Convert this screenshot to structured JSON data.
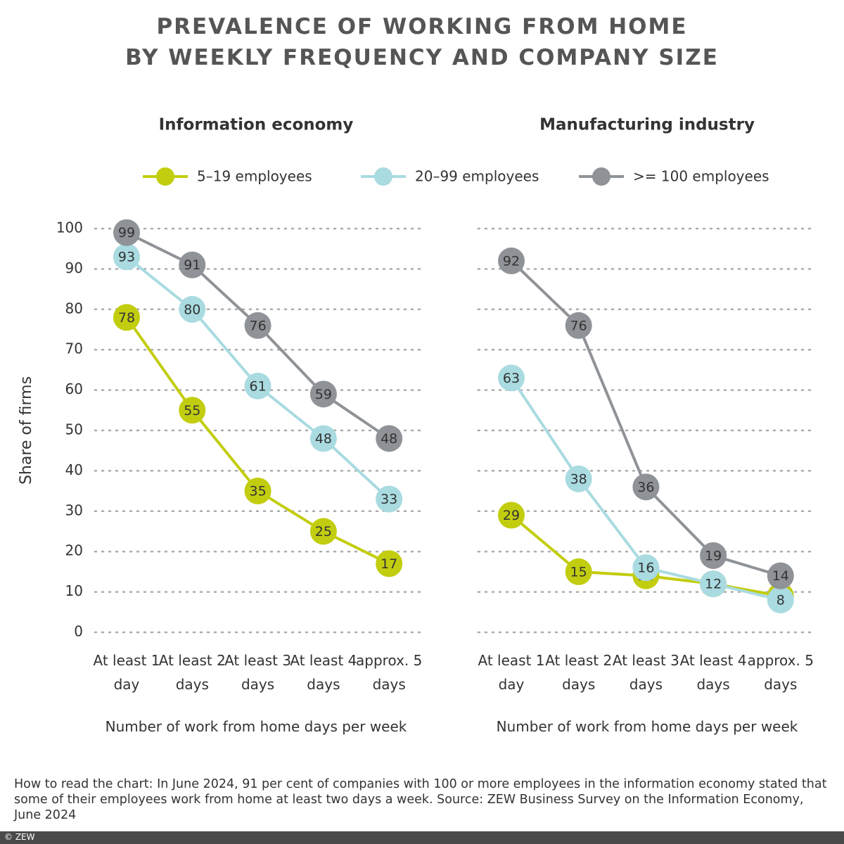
{
  "title_lines": [
    "PREVALENCE OF WORKING FROM HOME",
    "BY WEEKLY FREQUENCY AND COMPANY SIZE"
  ],
  "chart_data": [
    {
      "type": "line",
      "title": "Information economy",
      "y_label": "Share of firms",
      "x_label": "Number of work from home days per week",
      "categories": [
        "At least 1 day",
        "At least 2 days",
        "At least 3 days",
        "At least 4 days",
        "approx. 5 days"
      ],
      "ylim": [
        0,
        100
      ],
      "yticks": [
        0,
        10,
        20,
        30,
        40,
        50,
        60,
        70,
        80,
        90,
        100
      ],
      "tick_labels": true,
      "grid": true,
      "series": [
        {
          "name": "5–19 employees",
          "color": "#c2cd0f",
          "values": [
            78,
            55,
            35,
            25,
            17
          ]
        },
        {
          "name": "20–99 employees",
          "color": "#a9dbe1",
          "values": [
            93,
            80,
            61,
            48,
            33
          ]
        },
        {
          "name": ">= 100 employees",
          "color": "#8f9397",
          "values": [
            99,
            91,
            76,
            59,
            48
          ]
        }
      ]
    },
    {
      "type": "line",
      "title": "Manufacturing industry",
      "x_label": "Number of work from home days per week",
      "categories": [
        "At least 1 day",
        "At least 2 days",
        "At least 3 days",
        "At least 4 days",
        "approx. 5 days"
      ],
      "ylim": [
        0,
        100
      ],
      "yticks": [
        0,
        10,
        20,
        30,
        40,
        50,
        60,
        70,
        80,
        90,
        100
      ],
      "tick_labels": false,
      "grid": true,
      "series": [
        {
          "name": "5–19 employees",
          "color": "#c2cd0f",
          "values": [
            29,
            15,
            14,
            12,
            9
          ]
        },
        {
          "name": "20–99 employees",
          "color": "#a9dbe1",
          "values": [
            63,
            38,
            16,
            12,
            8
          ]
        },
        {
          "name": ">= 100 employees",
          "color": "#8f9397",
          "values": [
            92,
            76,
            36,
            19,
            14
          ]
        }
      ]
    }
  ],
  "note": "How to read the chart: In June 2024, 91 per cent of companies with 100 or more employees in the information economy stated that some of their employees work from home at least two days a week. Source: ZEW Business Survey on the Information Economy, June 2024",
  "copyright": "© ZEW"
}
